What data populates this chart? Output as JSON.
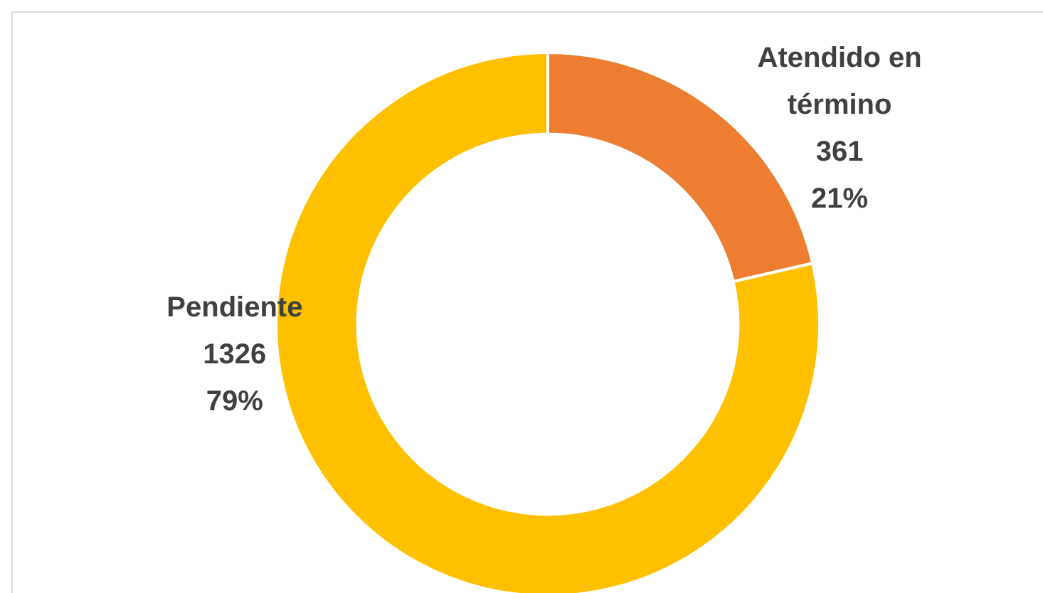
{
  "chart_data": {
    "type": "donut",
    "categories": [
      "Atendido en término",
      "Pendiente"
    ],
    "values": [
      361,
      1326
    ],
    "colors": [
      "#ed7d31",
      "#ffc000"
    ],
    "value_labels": [
      "361\n21%",
      "1326\n79%"
    ],
    "legend": false
  }
}
